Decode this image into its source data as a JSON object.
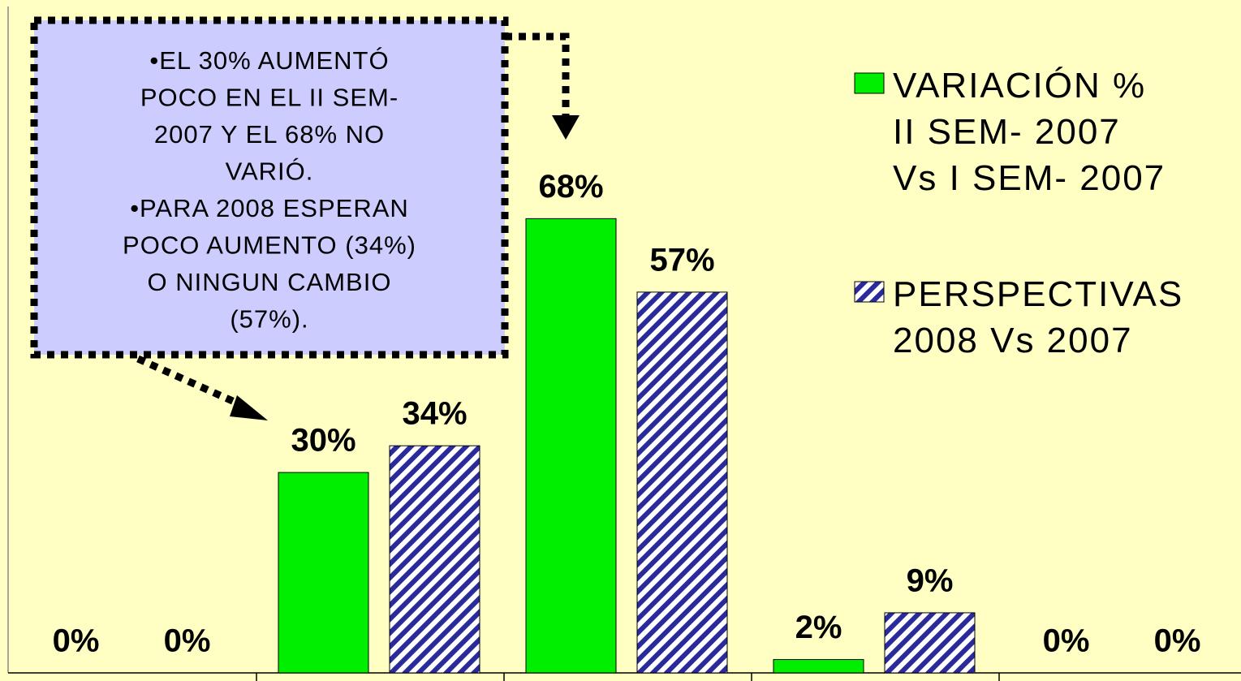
{
  "chart_data": {
    "type": "bar",
    "categories": [
      null,
      null,
      null,
      null,
      null
    ],
    "series": [
      {
        "name": "VARIACIÓN %\nII SEM- 2007\nVs I SEM- 2007",
        "color": "#00ee00",
        "hatch": false,
        "values": [
          0,
          30,
          68,
          2,
          0
        ],
        "value_labels": [
          "0%",
          "30%",
          "68%",
          "2%",
          "0%"
        ]
      },
      {
        "name": "PERSPECTIVAS\n2008 Vs 2007",
        "color": "#2a2a9a",
        "hatch": true,
        "values": [
          0,
          34,
          57,
          9,
          0
        ],
        "value_labels": [
          "0%",
          "34%",
          "57%",
          "9%",
          "0%"
        ]
      }
    ],
    "ylim": [
      0,
      100
    ],
    "legend": "right",
    "annotation": [
      "•EL 30% AUMENTÓ",
      "POCO EN EL II SEM-",
      "2007 Y EL 68% NO",
      "VARIÓ.",
      "•PARA 2008 ESPERAN",
      "POCO AUMENTO (34%)",
      "O NINGUN CAMBIO",
      "(57%)."
    ]
  }
}
